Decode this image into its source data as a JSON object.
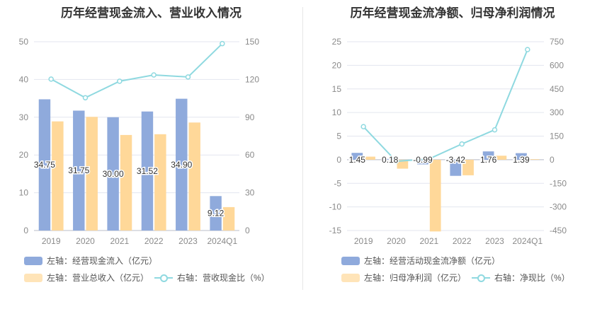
{
  "chart_data": [
    {
      "type": "bar",
      "title": "历年经营现金流入、营业收入情况",
      "categories": [
        "2019",
        "2020",
        "2021",
        "2022",
        "2023",
        "2024Q1"
      ],
      "series": [
        {
          "name": "左轴：经营现金流入（亿元）",
          "axis": "left",
          "type": "bar",
          "color": "#8faadc",
          "values": [
            34.75,
            31.75,
            30.0,
            31.52,
            34.9,
            9.12
          ],
          "labels": [
            "34.75",
            "31.75",
            "30.00",
            "31.52",
            "34.90",
            "9.12"
          ]
        },
        {
          "name": "左轴：营业总收入（亿元）",
          "axis": "left",
          "type": "bar",
          "color": "#ffd899",
          "values": [
            28.9,
            30.1,
            25.3,
            25.5,
            28.6,
            6.2
          ]
        },
        {
          "name": "右轴：营收现金比（%）",
          "axis": "right",
          "type": "line",
          "color": "#8fd9e0",
          "values": [
            120.3,
            105.5,
            118.6,
            123.6,
            122.0,
            148.5
          ]
        }
      ],
      "left_axis": {
        "min": 0,
        "max": 50,
        "ticks": [
          "0",
          "10",
          "20",
          "30",
          "40",
          "50"
        ]
      },
      "right_axis": {
        "min": 0,
        "max": 150,
        "ticks": [
          "0",
          "30",
          "60",
          "90",
          "120",
          "150"
        ]
      },
      "grid": true
    },
    {
      "type": "bar",
      "title": "历年经营现金流净额、归母净利润情况",
      "categories": [
        "2019",
        "2020",
        "2021",
        "2022",
        "2023",
        "2024Q1"
      ],
      "series": [
        {
          "name": "左轴：经营活动现金流净额（亿元）",
          "axis": "left",
          "type": "bar",
          "color": "#8faadc",
          "values": [
            1.45,
            0.18,
            -0.99,
            -3.42,
            1.76,
            1.39
          ],
          "labels": [
            "1.45",
            "0.18",
            "-0.99",
            "-3.42",
            "1.76",
            "1.39"
          ]
        },
        {
          "name": "左轴：归母净利润（亿元）",
          "axis": "left",
          "type": "bar",
          "color": "#ffd899",
          "values": [
            0.65,
            -1.9,
            -15.2,
            -3.3,
            0.85,
            0.12
          ]
        },
        {
          "name": "右轴：净现比（%）",
          "axis": "right",
          "type": "line",
          "color": "#8fd9e0",
          "values": [
            210,
            -10,
            5,
            100,
            190,
            700
          ]
        }
      ],
      "left_axis": {
        "min": -15,
        "max": 25,
        "ticks": [
          "-15",
          "-10",
          "-5",
          "0",
          "5",
          "10",
          "15",
          "20",
          "25"
        ]
      },
      "right_axis": {
        "min": -450,
        "max": 750,
        "ticks": [
          "-450",
          "-300",
          "-150",
          "0",
          "150",
          "300",
          "450",
          "600",
          "750"
        ]
      },
      "grid": true
    }
  ]
}
